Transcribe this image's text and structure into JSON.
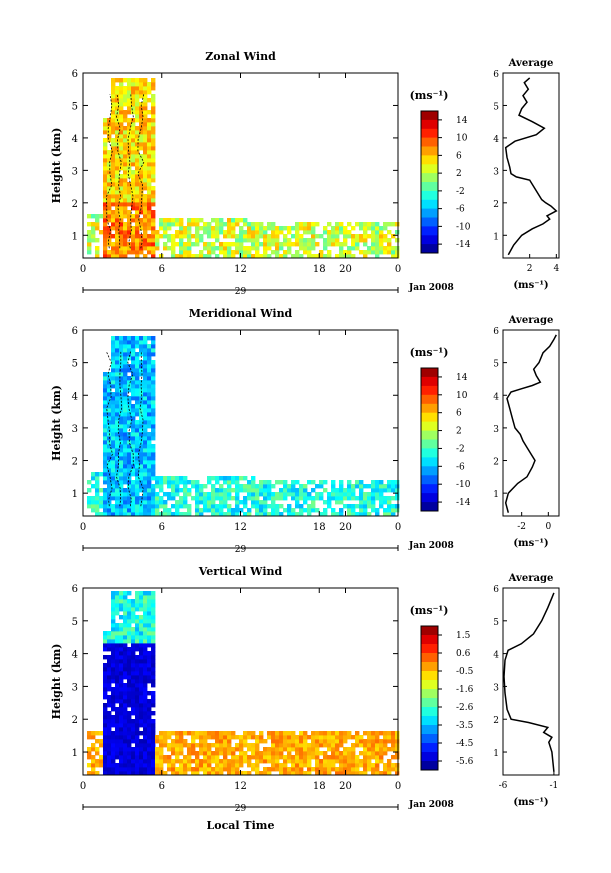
{
  "date_label": "Jan 2008",
  "day_label": "29",
  "x_axis_title": "Local Time",
  "y_axis_title": "Height (km)",
  "avg_title": "Average",
  "unit": "(ms⁻¹)",
  "chart_data": [
    {
      "type": "heatmap",
      "title": "Zonal Wind",
      "xlabel": "",
      "ylabel": "Height (km)",
      "xlim": [
        0,
        24
      ],
      "ylim": [
        0.3,
        6
      ],
      "xticks": [
        "0",
        "6",
        "12",
        "18",
        "20",
        "0"
      ],
      "yticks": [
        "1",
        "2",
        "3",
        "4",
        "5",
        "6"
      ],
      "colorbar": {
        "label": "(ms⁻¹)",
        "ticks": [
          "14",
          "10",
          "6",
          "2",
          "-2",
          "-6",
          "-10",
          "-14"
        ],
        "range": [
          -14,
          14
        ]
      },
      "average_profile": {
        "title": "Average",
        "xlabel": "(ms⁻¹)",
        "xticks": [
          "2",
          "4"
        ],
        "xlim": [
          0,
          4.2
        ],
        "yticks": [
          "1",
          "2",
          "3",
          "4",
          "5",
          "6"
        ],
        "points": [
          [
            0.4,
            0.4
          ],
          [
            0.8,
            0.7
          ],
          [
            1.4,
            1.0
          ],
          [
            2.2,
            1.2
          ],
          [
            3.0,
            1.35
          ],
          [
            3.5,
            1.5
          ],
          [
            3.3,
            1.6
          ],
          [
            4.0,
            1.75
          ],
          [
            3.6,
            1.9
          ],
          [
            3.2,
            2.0
          ],
          [
            2.9,
            2.1
          ],
          [
            2.6,
            2.3
          ],
          [
            2.3,
            2.5
          ],
          [
            2.0,
            2.7
          ],
          [
            1.0,
            2.8
          ],
          [
            0.6,
            2.9
          ],
          [
            0.5,
            3.1
          ],
          [
            0.3,
            3.4
          ],
          [
            0.2,
            3.7
          ],
          [
            0.9,
            3.9
          ],
          [
            2.5,
            4.1
          ],
          [
            3.1,
            4.3
          ],
          [
            2.2,
            4.5
          ],
          [
            1.2,
            4.7
          ],
          [
            1.4,
            4.9
          ],
          [
            1.8,
            5.1
          ],
          [
            1.5,
            5.3
          ],
          [
            1.9,
            5.5
          ],
          [
            1.6,
            5.7
          ],
          [
            2.0,
            5.85
          ]
        ]
      }
    },
    {
      "type": "heatmap",
      "title": "Meridional Wind",
      "xlabel": "",
      "ylabel": "Height (km)",
      "xlim": [
        0,
        24
      ],
      "ylim": [
        0.3,
        6
      ],
      "xticks": [
        "0",
        "6",
        "12",
        "18",
        "20",
        "0"
      ],
      "yticks": [
        "1",
        "2",
        "3",
        "4",
        "5",
        "6"
      ],
      "colorbar": {
        "label": "(ms⁻¹)",
        "ticks": [
          "14",
          "10",
          "6",
          "2",
          "-2",
          "-6",
          "-10",
          "-14"
        ],
        "range": [
          -14,
          14
        ]
      },
      "average_profile": {
        "title": "Average",
        "xlabel": "(ms⁻¹)",
        "xticks": [
          "-2",
          "0"
        ],
        "xlim": [
          -3.4,
          0.8
        ],
        "yticks": [
          "1",
          "2",
          "3",
          "4",
          "5",
          "6"
        ],
        "points": [
          [
            -3.0,
            0.4
          ],
          [
            -3.2,
            0.7
          ],
          [
            -3.0,
            1.0
          ],
          [
            -2.3,
            1.3
          ],
          [
            -1.6,
            1.5
          ],
          [
            -1.2,
            1.8
          ],
          [
            -1.0,
            2.0
          ],
          [
            -1.3,
            2.2
          ],
          [
            -1.6,
            2.4
          ],
          [
            -1.9,
            2.6
          ],
          [
            -2.1,
            2.8
          ],
          [
            -2.5,
            3.0
          ],
          [
            -2.7,
            3.3
          ],
          [
            -2.9,
            3.6
          ],
          [
            -3.1,
            3.9
          ],
          [
            -2.8,
            4.1
          ],
          [
            -2.0,
            4.2
          ],
          [
            -1.2,
            4.3
          ],
          [
            -0.6,
            4.4
          ],
          [
            -0.9,
            4.6
          ],
          [
            -1.1,
            4.8
          ],
          [
            -0.7,
            5.0
          ],
          [
            -0.4,
            5.3
          ],
          [
            0.1,
            5.5
          ],
          [
            0.4,
            5.7
          ],
          [
            0.6,
            5.85
          ]
        ]
      }
    },
    {
      "type": "heatmap",
      "title": "Vertical Wind",
      "xlabel": "Local Time",
      "ylabel": "Height (km)",
      "xlim": [
        0,
        24
      ],
      "ylim": [
        0.3,
        6
      ],
      "xticks": [
        "0",
        "6",
        "12",
        "18",
        "20",
        "0"
      ],
      "yticks": [
        "1",
        "2",
        "3",
        "4",
        "5",
        "6"
      ],
      "colorbar": {
        "label": "(ms⁻¹)",
        "ticks": [
          "1.5",
          "0.6",
          "-0.5",
          "-1.6",
          "-2.6",
          "-3.5",
          "-4.5",
          "-5.6"
        ],
        "range": [
          -5.6,
          1.5
        ]
      },
      "average_profile": {
        "title": "Average",
        "xlabel": "(ms⁻¹)",
        "xticks": [
          "-6",
          "-1"
        ],
        "xlim": [
          -6,
          -0.5
        ],
        "yticks": [
          "1",
          "2",
          "3",
          "4",
          "5",
          "6"
        ],
        "points": [
          [
            -1.0,
            0.4
          ],
          [
            -1.1,
            0.7
          ],
          [
            -1.2,
            1.0
          ],
          [
            -1.5,
            1.3
          ],
          [
            -1.2,
            1.45
          ],
          [
            -2.0,
            1.6
          ],
          [
            -1.6,
            1.75
          ],
          [
            -3.5,
            1.9
          ],
          [
            -5.2,
            2.0
          ],
          [
            -5.6,
            2.3
          ],
          [
            -5.8,
            2.8
          ],
          [
            -5.9,
            3.3
          ],
          [
            -5.8,
            3.8
          ],
          [
            -5.5,
            4.1
          ],
          [
            -4.2,
            4.3
          ],
          [
            -3.0,
            4.6
          ],
          [
            -2.2,
            5.0
          ],
          [
            -1.6,
            5.4
          ],
          [
            -1.2,
            5.7
          ],
          [
            -1.0,
            5.85
          ]
        ]
      }
    }
  ]
}
